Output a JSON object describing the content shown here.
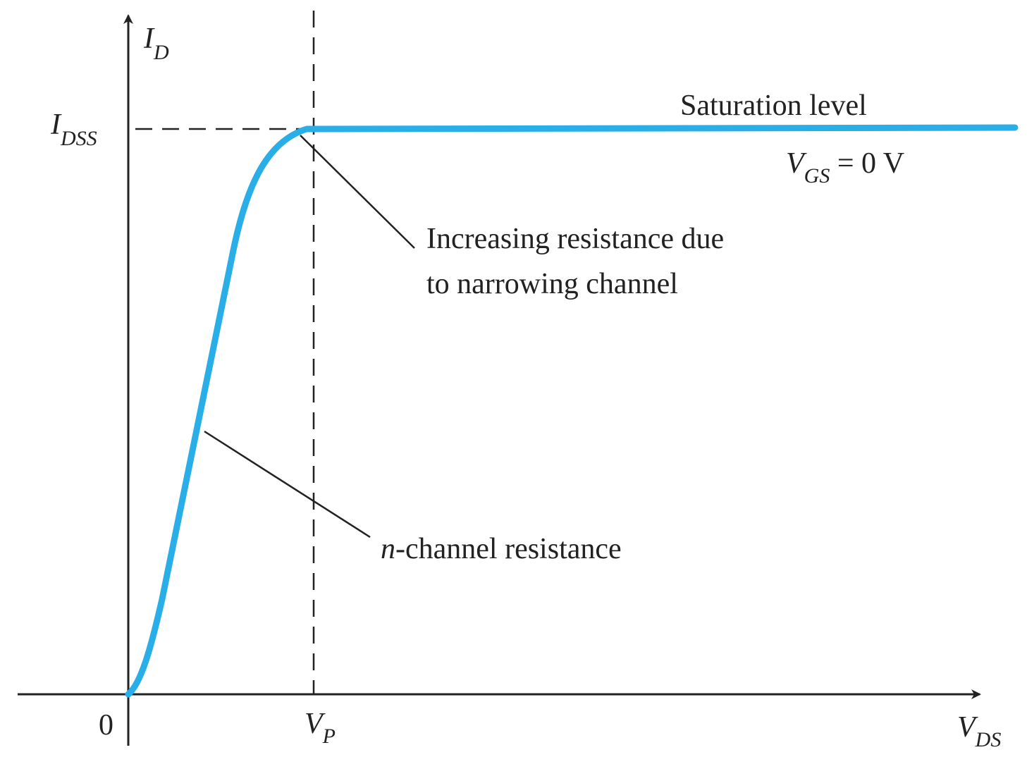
{
  "axes": {
    "y_symbol": "I",
    "y_subscript": "D",
    "x_symbol": "V",
    "x_subscript": "DS",
    "origin": "0",
    "idss_symbol": "I",
    "idss_subscript": "DSS",
    "vp_symbol": "V",
    "vp_subscript": "P"
  },
  "annotations": {
    "saturation_label": "Saturation level",
    "vgs_symbol": "V",
    "vgs_subscript": "GS",
    "vgs_value": " = 0 V",
    "increasing_line1": "Increasing resistance due",
    "increasing_line2": "to narrowing channel",
    "nchannel_prefix": "n",
    "nchannel_rest": "-channel resistance"
  },
  "colors": {
    "curve": "#29aee8",
    "ink": "#222222"
  }
}
